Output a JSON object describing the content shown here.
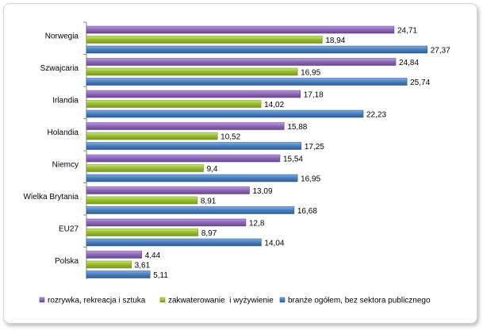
{
  "chart_data": {
    "type": "bar",
    "orientation": "horizontal",
    "categories": [
      "Norwegia",
      "Szwajcaria",
      "Irlandia",
      "Holandia",
      "Niemcy",
      "Wielka Brytania",
      "EU27",
      "Polska"
    ],
    "series": [
      {
        "name": "rozrywka, rekreacja i sztuka",
        "color": "#8e6bb7",
        "values": [
          24.71,
          24.84,
          17.18,
          15.88,
          15.54,
          13.09,
          12.8,
          4.44
        ],
        "labels": [
          "24,71",
          "24,84",
          "17,18",
          "15,88",
          "15,54",
          "13,09",
          "12,8",
          "4,44"
        ]
      },
      {
        "name": "zakwaterowanie  i wyżywienie",
        "color": "#9bbd3b",
        "values": [
          18.94,
          16.95,
          14.02,
          10.52,
          9.4,
          8.91,
          8.97,
          3.61
        ],
        "labels": [
          "18,94",
          "16,95",
          "14,02",
          "10,52",
          "9,4",
          "8,91",
          "8,97",
          "3,61"
        ]
      },
      {
        "name": "branże ogółem, bez sektora publicznego",
        "color": "#4f81bd",
        "values": [
          27.37,
          25.74,
          22.23,
          17.25,
          16.95,
          16.68,
          14.04,
          5.11
        ],
        "labels": [
          "27,37",
          "25,74",
          "22,23",
          "17,25",
          "16,95",
          "16,68",
          "14,04",
          "5,11"
        ]
      }
    ],
    "xlim": [
      0,
      30
    ],
    "grid": false,
    "legend_position": "bottom"
  }
}
